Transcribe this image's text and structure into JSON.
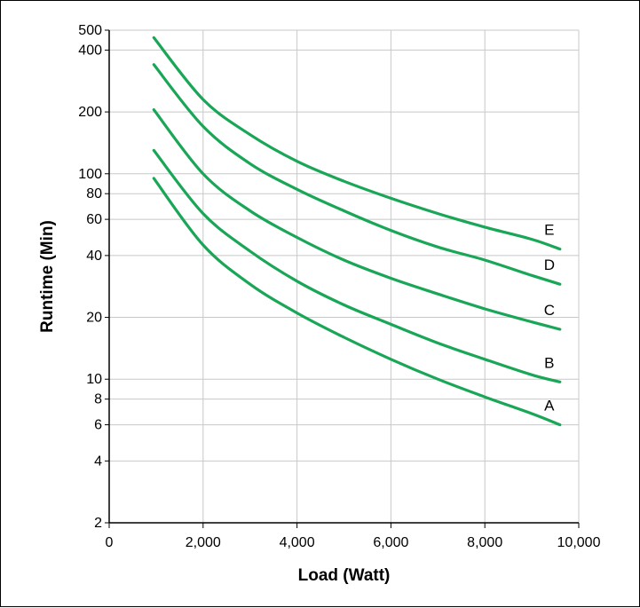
{
  "chart_data": {
    "type": "line",
    "title": "",
    "xlabel": "Load (Watt)",
    "ylabel": "Runtime (Min)",
    "xlim": [
      0,
      10000
    ],
    "ylim": [
      2,
      500
    ],
    "y_scale": "log",
    "grid": true,
    "x_ticks": [
      0,
      2000,
      4000,
      6000,
      8000,
      10000
    ],
    "x_tick_labels": [
      "0",
      "2,000",
      "4,000",
      "6,000",
      "8,000",
      "10,000"
    ],
    "y_ticks": [
      2,
      4,
      6,
      8,
      10,
      20,
      40,
      60,
      80,
      100,
      200,
      400,
      500
    ],
    "y_tick_labels": [
      "2",
      "4",
      "6",
      "8",
      "10",
      "20",
      "40",
      "60",
      "80",
      "100",
      "200",
      "400",
      "500"
    ],
    "line_color": "#1aa657",
    "series": [
      {
        "name": "A",
        "x": [
          950,
          2000,
          3000,
          4000,
          5000,
          6000,
          7000,
          8000,
          9000,
          9600
        ],
        "y": [
          95,
          45,
          29,
          21,
          16,
          12.5,
          10,
          8.2,
          6.8,
          6
        ]
      },
      {
        "name": "B",
        "x": [
          950,
          2000,
          3000,
          4000,
          5000,
          6000,
          7000,
          8000,
          9000,
          9600
        ],
        "y": [
          130,
          64,
          42,
          30,
          23,
          18.5,
          15,
          12.5,
          10.5,
          9.7
        ]
      },
      {
        "name": "C",
        "x": [
          950,
          2000,
          3000,
          4000,
          5000,
          6000,
          7000,
          8000,
          9000,
          9600
        ],
        "y": [
          205,
          100,
          66,
          49,
          38,
          31,
          26,
          22,
          19,
          17.5
        ]
      },
      {
        "name": "D",
        "x": [
          950,
          2000,
          3000,
          4000,
          5000,
          6000,
          7000,
          8000,
          9000,
          9600
        ],
        "y": [
          340,
          170,
          112,
          84,
          66,
          53,
          44,
          38,
          32,
          29
        ]
      },
      {
        "name": "E",
        "x": [
          950,
          2000,
          3000,
          4000,
          5000,
          6000,
          7000,
          8000,
          9000,
          9600
        ],
        "y": [
          460,
          230,
          155,
          115,
          92,
          76,
          64,
          55,
          48,
          43
        ]
      }
    ]
  }
}
